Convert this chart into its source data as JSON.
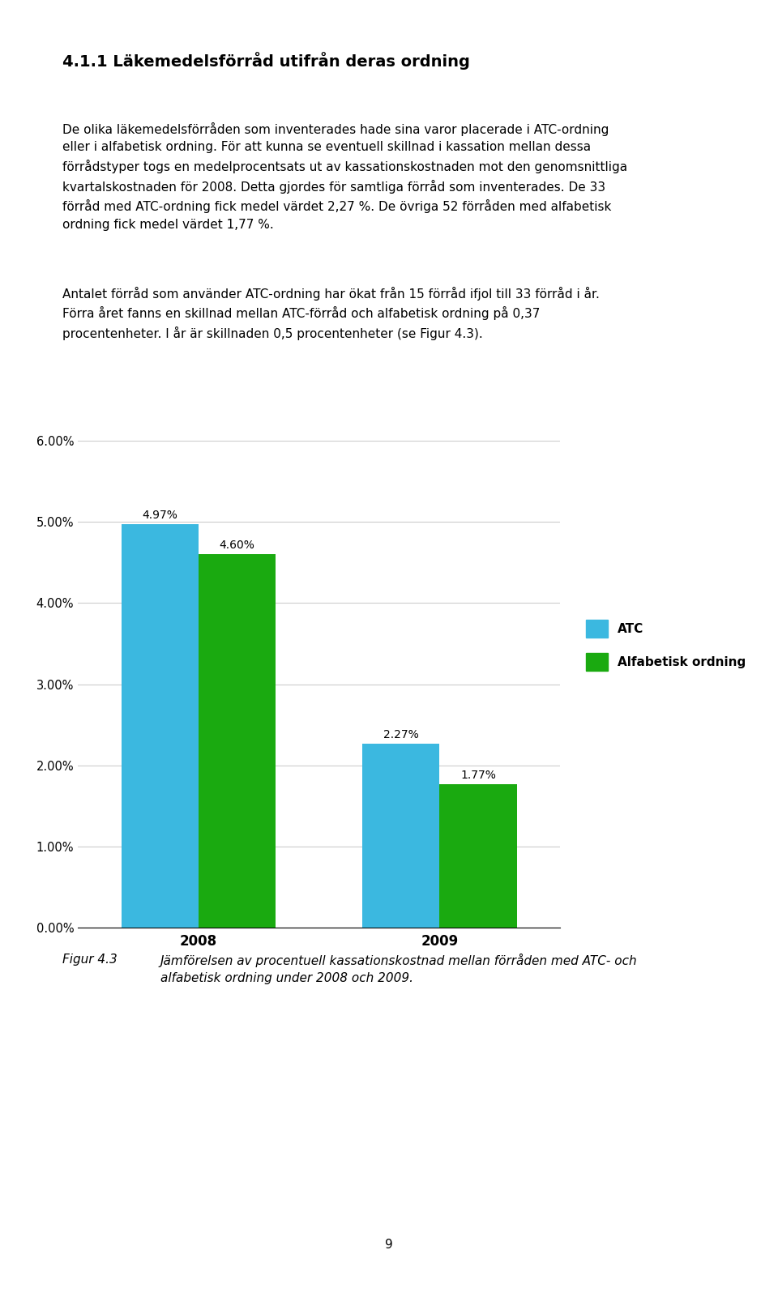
{
  "years": [
    "2008",
    "2009"
  ],
  "atc_values": [
    4.97,
    2.27
  ],
  "alfa_values": [
    4.6,
    1.77
  ],
  "atc_labels": [
    "4.97%",
    "2.27%"
  ],
  "alfa_labels": [
    "4.60%",
    "1.77%"
  ],
  "atc_color": "#3BB8E0",
  "alfa_color": "#1AAA10",
  "ylim": [
    0.0,
    6.0
  ],
  "yticks": [
    0.0,
    1.0,
    2.0,
    3.0,
    4.0,
    5.0,
    6.0
  ],
  "ytick_labels": [
    "0.00%",
    "1.00%",
    "2.00%",
    "3.00%",
    "4.00%",
    "5.00%",
    "6.00%"
  ],
  "legend_atc": "ATC",
  "legend_alfa": "Alfabetisk ordning",
  "bar_width": 0.32,
  "background_color": "#ffffff",
  "fig_label": "Figur 4.3",
  "fig_caption_line1": "Jämförelsen av procentuell kassationskostnad mellan förråden med ATC- och",
  "fig_caption_line2": "alfabetisk ordning under 2008 och 2009.",
  "page_number": "9",
  "title": "4.1.1 Läkemedelsförråd utifrån deras ordning",
  "body_para1_line1": "De olika läkemedelsförråden som inventerades hade sina varor placerade i ATC-ordning",
  "body_para1_line2": "eller i alfabetisk ordning. För att kunna se eventuell skillnad i kassation mellan dessa",
  "body_para1_line3": "förrådstyper togs en medelprocentsats ut av kassationskostnaden mot den genomsnittliga",
  "body_para1_line4": "kvartalskostnaden för 2008. Detta gjordes för samtliga förråd som inventerades. De 33",
  "body_para1_line5": "förråd med ATC-ordning fick medel värdet 2,27 %. De övriga 52 förråden med alfabetisk",
  "body_para1_line6": "ordning fick medel värdet 1,77 %.",
  "body_para2_line1": "Antalet förråd som använder ATC-ordning har ökat från 15 förråd ifjol till 33 förråd i år.",
  "body_para2_line2": "Förra året fanns en skillnad mellan ATC-förråd och alfabetisk ordning på 0,37",
  "body_para2_line3": "procentenheter. I år är skillnaden 0,5 procentenheter (se Figur 4.3)."
}
